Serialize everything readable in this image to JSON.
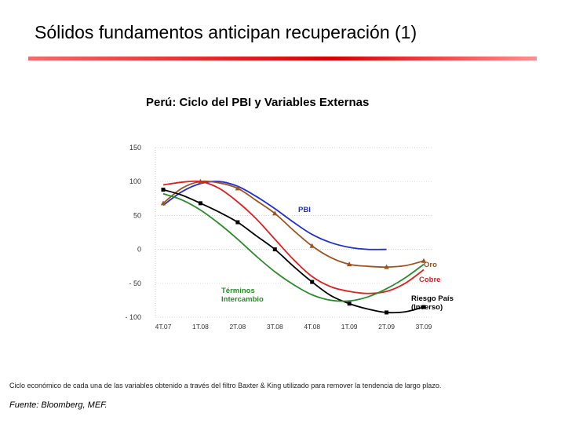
{
  "slide": {
    "title": "Sólidos fundamentos anticipan recuperación (1)",
    "footnote": "Ciclo económico de cada una de las variables obtenido a través del filtro Baxter & King utilizado para remover la tendencia de largo plazo.",
    "source": "Fuente: Bloomberg, MEF.",
    "rule_color": "#d90000"
  },
  "chart_data": {
    "type": "line",
    "title": "Perú: Ciclo del PBI y Variables Externas",
    "xlabel": "",
    "ylabel": "",
    "categories": [
      "4T.07",
      "1T.08",
      "2T.08",
      "3T.08",
      "4T.08",
      "1T.09",
      "2T.09",
      "3T.09"
    ],
    "ylim": [
      -100,
      150
    ],
    "yticks": [
      150,
      100,
      50,
      0,
      -50,
      -100
    ],
    "ytick_labels": [
      "150",
      "100",
      "50",
      "0",
      "- 50",
      "- 100"
    ],
    "grid": true,
    "series": [
      {
        "name": "PBI",
        "label_lines": [
          "PBI"
        ],
        "color": "#1f2fd4",
        "marker": "none",
        "x": [
          0,
          0.5,
          1,
          1.5,
          2,
          2.5,
          3,
          3.5,
          4,
          4.5,
          5,
          5.5,
          6
        ],
        "values": [
          65,
          85,
          97,
          100,
          93,
          78,
          60,
          40,
          22,
          10,
          3,
          0,
          0
        ]
      },
      {
        "name": "Oro",
        "label_lines": [
          "Oro"
        ],
        "color": "#a0521e",
        "marker": "triangle",
        "x": [
          0,
          0.5,
          1,
          1.5,
          2,
          2.5,
          3,
          3.5,
          4,
          4.5,
          5,
          5.5,
          6,
          6.5,
          7
        ],
        "values": [
          68,
          90,
          100,
          98,
          90,
          72,
          53,
          28,
          5,
          -12,
          -22,
          -25,
          -26,
          -24,
          -17
        ]
      },
      {
        "name": "Cobre",
        "label_lines": [
          "Cobre"
        ],
        "color": "#e02020",
        "marker": "none",
        "x": [
          0,
          0.5,
          1,
          1.5,
          2,
          2.5,
          3,
          3.5,
          4,
          4.5,
          5,
          5.5,
          6,
          6.5,
          7
        ],
        "values": [
          95,
          99,
          100,
          90,
          70,
          45,
          15,
          -15,
          -40,
          -55,
          -62,
          -65,
          -62,
          -50,
          -30
        ]
      },
      {
        "name": "Riesgo País (Inverso)",
        "label_lines": [
          "Riesgo País",
          "(Inverso)"
        ],
        "color": "#000000",
        "marker": "square",
        "x": [
          0,
          0.5,
          1,
          1.5,
          2,
          2.5,
          3,
          3.5,
          4,
          4.5,
          5,
          5.5,
          6,
          6.5,
          7
        ],
        "values": [
          88,
          80,
          68,
          55,
          40,
          20,
          0,
          -25,
          -48,
          -68,
          -80,
          -88,
          -93,
          -92,
          -85
        ]
      },
      {
        "name": "Términos Intercambio",
        "label_lines": [
          "Términos",
          "Intercambio"
        ],
        "color": "#2a8c2a",
        "marker": "none",
        "x": [
          0,
          0.5,
          1,
          1.5,
          2,
          2.5,
          3,
          3.5,
          4,
          4.5,
          5,
          5.5,
          6,
          6.5,
          7
        ],
        "values": [
          82,
          73,
          58,
          38,
          15,
          -10,
          -33,
          -52,
          -67,
          -75,
          -76,
          -70,
          -58,
          -42,
          -22
        ]
      }
    ]
  }
}
